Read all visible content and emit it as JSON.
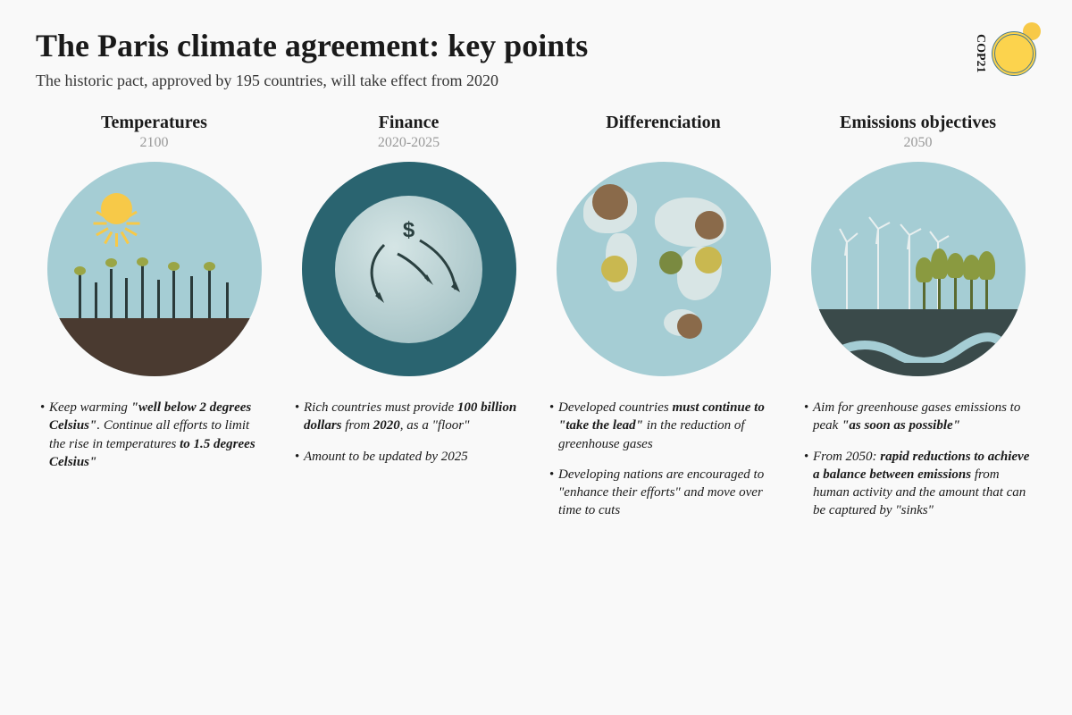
{
  "header": {
    "title": "The Paris climate agreement: key points",
    "subtitle": "The historic pact, approved by 195 countries, will take effect from 2020",
    "logo_label": "COP21"
  },
  "columns": [
    {
      "title": "Temperatures",
      "year": "2100",
      "circle_bg": "#a5cdd4",
      "points": [
        "Keep warming <b>\"well below 2 degrees Celsius\"</b>. Continue all efforts to limit the rise in temperatures <b>to 1.5 degrees Celsius\"</b>"
      ]
    },
    {
      "title": "Finance",
      "year": "2020-2025",
      "circle_bg": "#2a6470",
      "points": [
        "Rich countries must provide <b>100 billion dollars</b> from <b>2020</b>, as a \"floor\"",
        "Amount to be updated by 2025"
      ]
    },
    {
      "title": "Differenciation",
      "year": "",
      "circle_bg": "#a5cdd4",
      "points": [
        "Developed countries <b>must continue to \"take the lead\"</b> in the reduction of greenhouse gases",
        "Developing nations are encouraged to \"enhance their efforts\" and move over time to cuts"
      ]
    },
    {
      "title": "Emissions objectives",
      "year": "2050",
      "circle_bg": "#a5cdd4",
      "points": [
        "Aim for greenhouse gases emissions to peak <b>\"as soon as possible\"</b>",
        "From 2050: <b>rapid reductions to achieve a balance between emissions</b> from human activity and the amount that can be captured by \"sinks\""
      ]
    }
  ],
  "styling": {
    "sun_color": "#f7c948",
    "ground_brown": "#4a3a30",
    "dark_green": "#8a9a40",
    "teal_dark": "#2a6470",
    "sky_teal": "#a5cdd4",
    "title_color": "#1a1a1a",
    "year_color": "#999999",
    "dots": {
      "brown": "#8a6a4a",
      "olive": "#7a8a40",
      "yellow": "#c9b850"
    }
  }
}
